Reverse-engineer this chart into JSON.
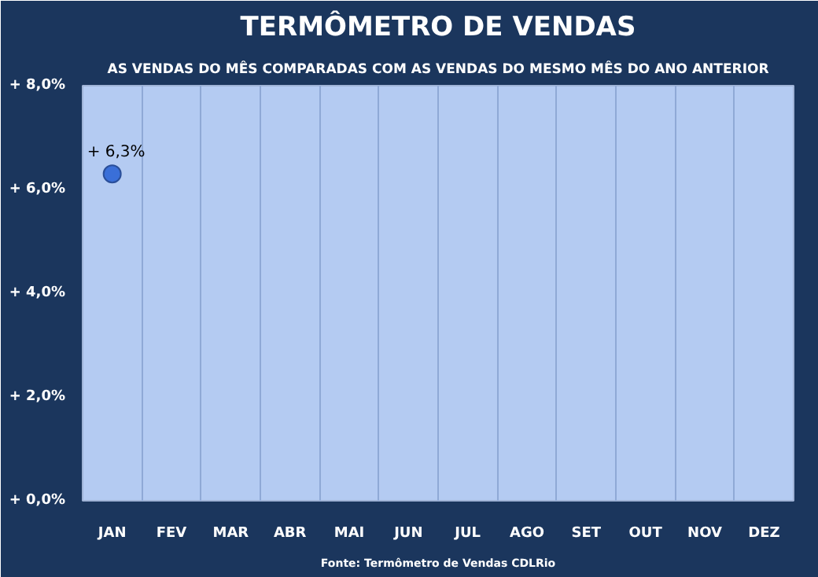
{
  "chart_data": {
    "type": "scatter",
    "title": "TERMÔMETRO DE VENDAS",
    "subtitle": "AS VENDAS DO MÊS COMPARADAS COM AS VENDAS DO MESMO MÊS DO ANO ANTERIOR",
    "categories": [
      "JAN",
      "FEV",
      "MAR",
      "ABR",
      "MAI",
      "JUN",
      "JUL",
      "AGO",
      "SET",
      "OUT",
      "NOV",
      "DEZ"
    ],
    "values": [
      6.3,
      null,
      null,
      null,
      null,
      null,
      null,
      null,
      null,
      null,
      null,
      null
    ],
    "value_labels": [
      "+ 6,3%",
      null,
      null,
      null,
      null,
      null,
      null,
      null,
      null,
      null,
      null,
      null
    ],
    "color": "#3a6fd8",
    "marker": "circle",
    "grid": "x",
    "ylim": [
      0,
      8
    ],
    "yticks": [
      {
        "value": 0,
        "label": "+ 0,0%"
      },
      {
        "value": 2,
        "label": "+ 2,0%"
      },
      {
        "value": 4,
        "label": "+ 4,0%"
      },
      {
        "value": 6,
        "label": "+ 6,0%"
      },
      {
        "value": 8,
        "label": "+ 8,0%"
      }
    ],
    "annotations": [
      "Fonte: Termômetro de Vendas CDLRio"
    ]
  }
}
